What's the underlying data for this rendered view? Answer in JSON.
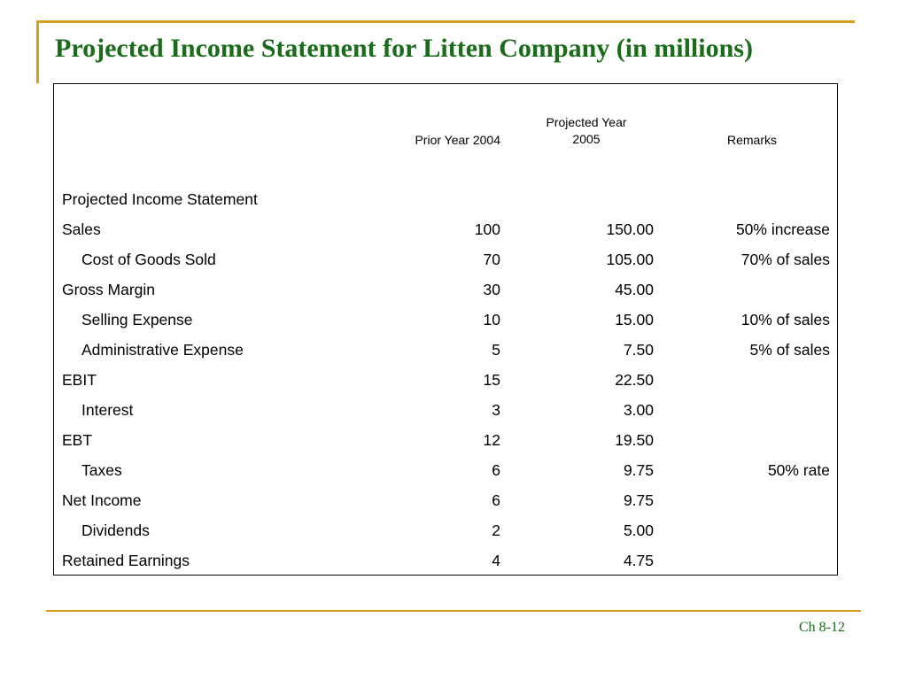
{
  "slide": {
    "title": "Projected Income Statement for Litten Company (in millions)",
    "footer": "Ch 8-12",
    "accent_color": "#d4a020",
    "title_color": "#1a6b1a"
  },
  "table": {
    "headers": {
      "prior": "Prior Year 2004",
      "projected_line1": "Projected Year",
      "projected_line2": "2005",
      "remarks": "Remarks"
    },
    "rows": [
      {
        "label": "Projected Income Statement",
        "prior": "",
        "projected": "",
        "remarks": ""
      },
      {
        "label": "Sales",
        "prior": "100",
        "projected": "150.00",
        "remarks": "50% increase"
      },
      {
        "label": "Cost of Goods Sold",
        "prior": "70",
        "projected": "105.00",
        "remarks": "70% of sales"
      },
      {
        "label": "Gross Margin",
        "prior": "30",
        "projected": "45.00",
        "remarks": ""
      },
      {
        "label": "Selling Expense",
        "prior": "10",
        "projected": "15.00",
        "remarks": "10% of sales"
      },
      {
        "label": "Administrative Expense",
        "prior": "5",
        "projected": "7.50",
        "remarks": "5% of sales"
      },
      {
        "label": "EBIT",
        "prior": "15",
        "projected": "22.50",
        "remarks": ""
      },
      {
        "label": "Interest",
        "prior": "3",
        "projected": "3.00",
        "remarks": ""
      },
      {
        "label": "EBT",
        "prior": "12",
        "projected": "19.50",
        "remarks": ""
      },
      {
        "label": "Taxes",
        "prior": "6",
        "projected": "9.75",
        "remarks": "50% rate"
      },
      {
        "label": "Net Income",
        "prior": "6",
        "projected": "9.75",
        "remarks": ""
      },
      {
        "label": "Dividends",
        "prior": "2",
        "projected": "5.00",
        "remarks": ""
      },
      {
        "label": "Retained Earnings",
        "prior": "4",
        "projected": "4.75",
        "remarks": ""
      }
    ]
  }
}
